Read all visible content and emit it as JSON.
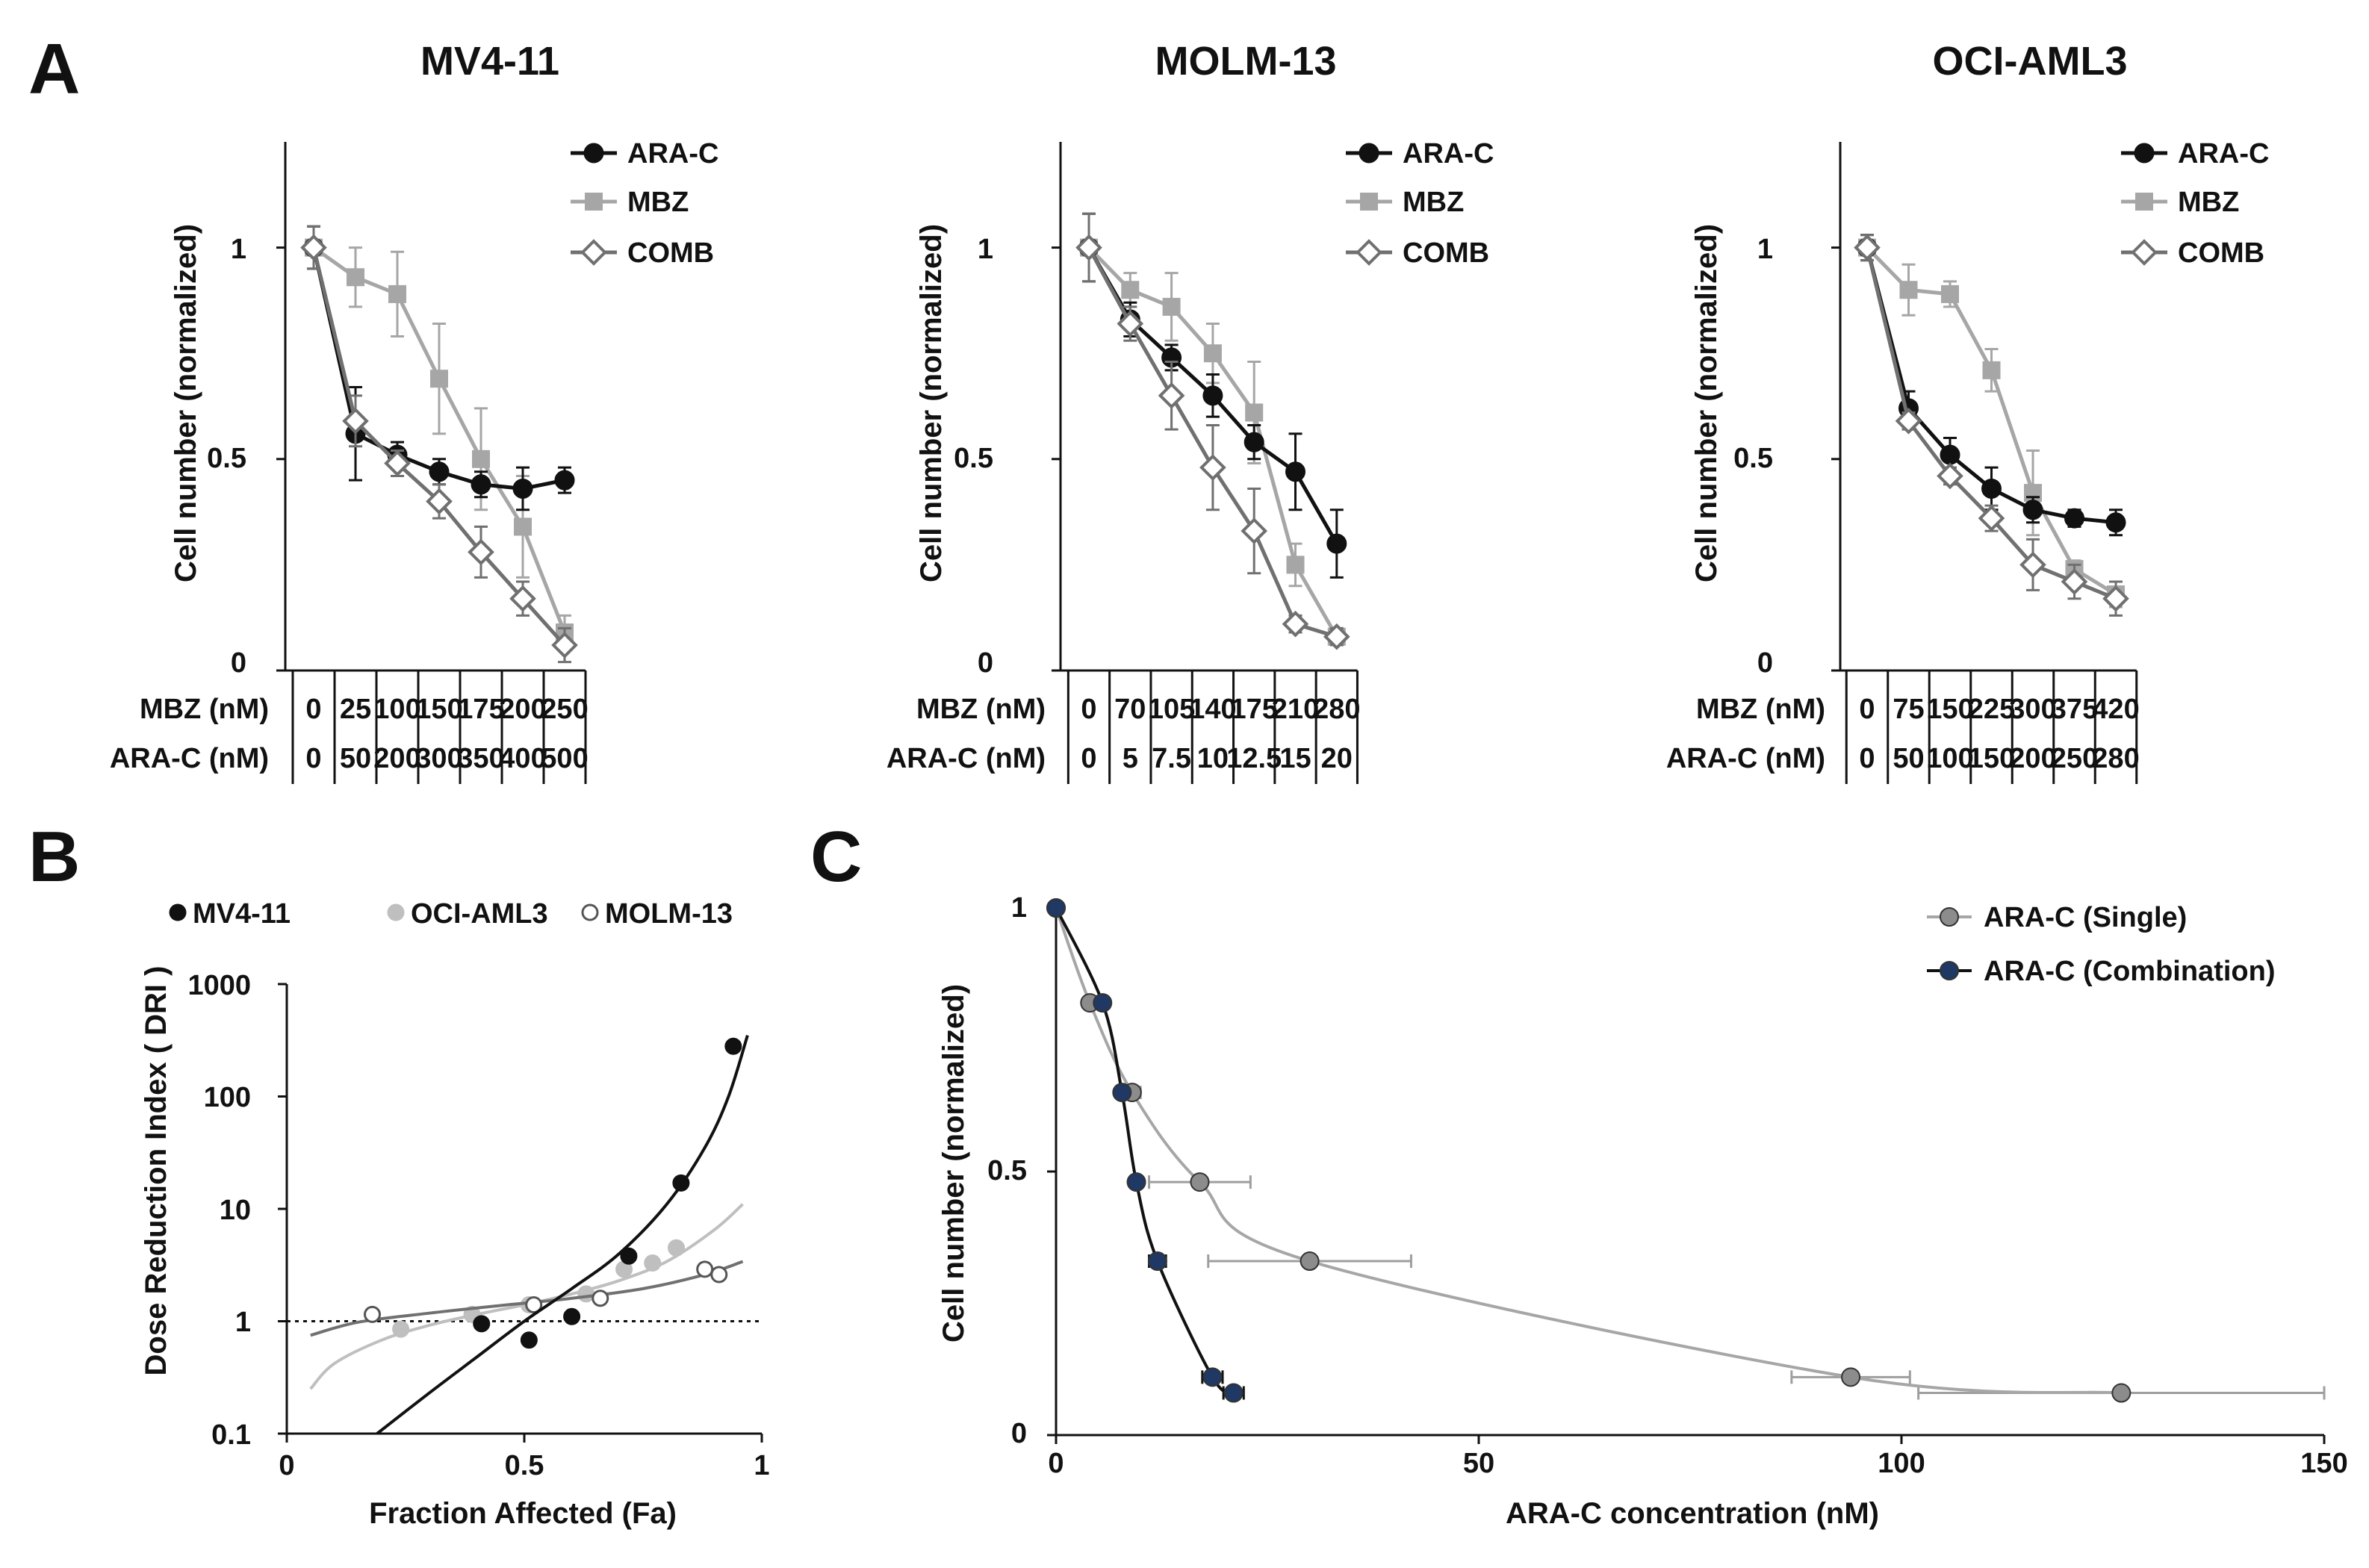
{
  "colors": {
    "black": "#111111",
    "lightgray": "#A6A6A6",
    "darkgray": "#707070",
    "navy": "#1F3864",
    "single": "#8C8C8C",
    "single_line": "#A6A6A6"
  },
  "chart_data": [
    {
      "id": "A1",
      "panel_letter": "A",
      "type": "line",
      "title": "MV4-11",
      "ylabel": "Cell number (normalized)",
      "ylim": [
        0,
        1.25
      ],
      "yticks": [
        "0",
        "0.5",
        "1"
      ],
      "row_labels": [
        "MBZ (nM)",
        "ARA-C (nM)"
      ],
      "mbz_doses": [
        "0",
        "25",
        "100",
        "150",
        "175",
        "200",
        "250"
      ],
      "arac_doses": [
        "0",
        "50",
        "200",
        "300",
        "350",
        "400",
        "500"
      ],
      "series": [
        {
          "name": "ARA-C",
          "values": [
            1.0,
            0.56,
            0.51,
            0.47,
            0.44,
            0.43,
            0.45
          ],
          "errors": [
            0.05,
            0.11,
            0.03,
            0.03,
            0.03,
            0.05,
            0.03
          ]
        },
        {
          "name": "MBZ",
          "values": [
            1.0,
            0.93,
            0.89,
            0.69,
            0.5,
            0.34,
            0.09
          ],
          "errors": [
            0.05,
            0.07,
            0.1,
            0.13,
            0.12,
            0.12,
            0.04
          ]
        },
        {
          "name": "COMB",
          "values": [
            1.0,
            0.59,
            0.49,
            0.4,
            0.28,
            0.17,
            0.06
          ],
          "errors": [
            0.05,
            0.06,
            0.03,
            0.04,
            0.06,
            0.04,
            0.04
          ]
        }
      ]
    },
    {
      "id": "A2",
      "type": "line",
      "title": "MOLM-13",
      "ylabel": "Cell number (normalized)",
      "ylim": [
        0,
        1.25
      ],
      "yticks": [
        "0",
        "0.5",
        "1"
      ],
      "row_labels": [
        "MBZ (nM)",
        "ARA-C (nM)"
      ],
      "mbz_doses": [
        "0",
        "70",
        "105",
        "140",
        "175",
        "210",
        "280"
      ],
      "arac_doses": [
        "0",
        "5",
        "7.5",
        "10",
        "12.5",
        "15",
        "20"
      ],
      "series": [
        {
          "name": "ARA-C",
          "values": [
            1.0,
            0.83,
            0.74,
            0.65,
            0.54,
            0.47,
            0.3
          ],
          "errors": [
            0.08,
            0.04,
            0.03,
            0.05,
            0.04,
            0.09,
            0.08
          ]
        },
        {
          "name": "MBZ",
          "values": [
            1.0,
            0.9,
            0.86,
            0.75,
            0.61,
            0.25,
            0.08
          ],
          "errors": [
            0.08,
            0.04,
            0.08,
            0.07,
            0.12,
            0.05,
            0.02
          ]
        },
        {
          "name": "COMB",
          "values": [
            1.0,
            0.82,
            0.65,
            0.48,
            0.33,
            0.11,
            0.08
          ],
          "errors": [
            0.08,
            0.04,
            0.08,
            0.1,
            0.1,
            0.02,
            0.02
          ]
        }
      ]
    },
    {
      "id": "A3",
      "type": "line",
      "title": "OCI-AML3",
      "ylabel": "Cell number (normalized)",
      "ylim": [
        0,
        1.25
      ],
      "yticks": [
        "0",
        "0.5",
        "1"
      ],
      "row_labels": [
        "MBZ (nM)",
        "ARA-C (nM)"
      ],
      "mbz_doses": [
        "0",
        "75",
        "150",
        "225",
        "300",
        "375",
        "420"
      ],
      "arac_doses": [
        "0",
        "50",
        "100",
        "150",
        "200",
        "250",
        "280"
      ],
      "series": [
        {
          "name": "ARA-C",
          "values": [
            1.0,
            0.62,
            0.51,
            0.43,
            0.38,
            0.36,
            0.35
          ],
          "errors": [
            0.03,
            0.04,
            0.04,
            0.05,
            0.03,
            0.02,
            0.03
          ]
        },
        {
          "name": "MBZ",
          "values": [
            1.0,
            0.9,
            0.89,
            0.71,
            0.42,
            0.24,
            0.18
          ],
          "errors": [
            0.03,
            0.06,
            0.03,
            0.05,
            0.1,
            0.02,
            0.03
          ]
        },
        {
          "name": "COMB",
          "values": [
            1.0,
            0.59,
            0.46,
            0.36,
            0.25,
            0.21,
            0.17
          ],
          "errors": [
            0.03,
            0.02,
            0.02,
            0.03,
            0.06,
            0.04,
            0.04
          ]
        }
      ]
    },
    {
      "id": "B",
      "panel_letter": "B",
      "type": "scatter",
      "xlabel": "Fraction Affected (Fa)",
      "ylabel": "Dose Reduction Index ( DRI )",
      "xlim": [
        0,
        1
      ],
      "ylim": [
        0.1,
        1000
      ],
      "yscale": "log",
      "xticks": [
        "0",
        "0.5",
        "1"
      ],
      "yticks": [
        "0.1",
        "1",
        "10",
        "100",
        "1000"
      ],
      "reference_line": 1,
      "series": [
        {
          "name": "MV4-11",
          "x": [
            0.41,
            0.51,
            0.6,
            0.72,
            0.83,
            0.94
          ],
          "y": [
            0.95,
            0.68,
            1.1,
            3.8,
            17,
            280
          ],
          "curve_x": [
            0.19,
            0.3,
            0.4,
            0.5,
            0.6,
            0.7,
            0.8,
            0.88,
            0.93,
            0.97
          ],
          "curve_y": [
            0.1,
            0.23,
            0.48,
            1.0,
            1.95,
            4.0,
            11,
            35,
            100,
            350
          ]
        },
        {
          "name": "OCI-AML3",
          "x": [
            0.24,
            0.39,
            0.51,
            0.63,
            0.71,
            0.77,
            0.82
          ],
          "y": [
            0.85,
            1.15,
            1.4,
            1.75,
            2.9,
            3.3,
            4.5
          ],
          "curve_x": [
            0.05,
            0.1,
            0.2,
            0.3,
            0.4,
            0.5,
            0.6,
            0.7,
            0.8,
            0.9,
            0.96
          ],
          "curve_y": [
            0.25,
            0.42,
            0.68,
            0.92,
            1.15,
            1.4,
            1.75,
            2.3,
            3.4,
            6.5,
            11
          ]
        },
        {
          "name": "MOLM-13",
          "x": [
            0.18,
            0.52,
            0.66,
            0.88,
            0.91
          ],
          "y": [
            1.15,
            1.4,
            1.6,
            2.9,
            2.6
          ],
          "curve_x": [
            0.05,
            0.15,
            0.3,
            0.45,
            0.6,
            0.75,
            0.88,
            0.96
          ],
          "curve_y": [
            0.75,
            0.98,
            1.18,
            1.38,
            1.6,
            1.95,
            2.6,
            3.4
          ]
        }
      ]
    },
    {
      "id": "C",
      "panel_letter": "C",
      "type": "scatter",
      "xlabel": "ARA-C concentration (nM)",
      "ylabel": "Cell number (normalized)",
      "xlim": [
        0,
        150
      ],
      "ylim": [
        0,
        1
      ],
      "xticks": [
        "0",
        "50",
        "100",
        "150"
      ],
      "yticks": [
        "0",
        "0.5",
        "1"
      ],
      "series": [
        {
          "name": "ARA-C (Single)",
          "x": [
            0,
            4,
            9,
            17,
            30,
            94,
            126
          ],
          "y": [
            1.0,
            0.82,
            0.65,
            0.48,
            0.33,
            0.11,
            0.08
          ],
          "xerr": [
            0,
            0.5,
            1,
            6,
            12,
            7,
            24
          ]
        },
        {
          "name": "ARA-C (Combination)",
          "x": [
            0,
            5.5,
            7.8,
            9.5,
            12,
            18.5,
            21
          ],
          "y": [
            1.0,
            0.82,
            0.65,
            0.48,
            0.33,
            0.11,
            0.08
          ],
          "xerr": [
            0,
            0.3,
            0.4,
            0.5,
            1,
            1.2,
            1.2
          ]
        }
      ]
    }
  ]
}
